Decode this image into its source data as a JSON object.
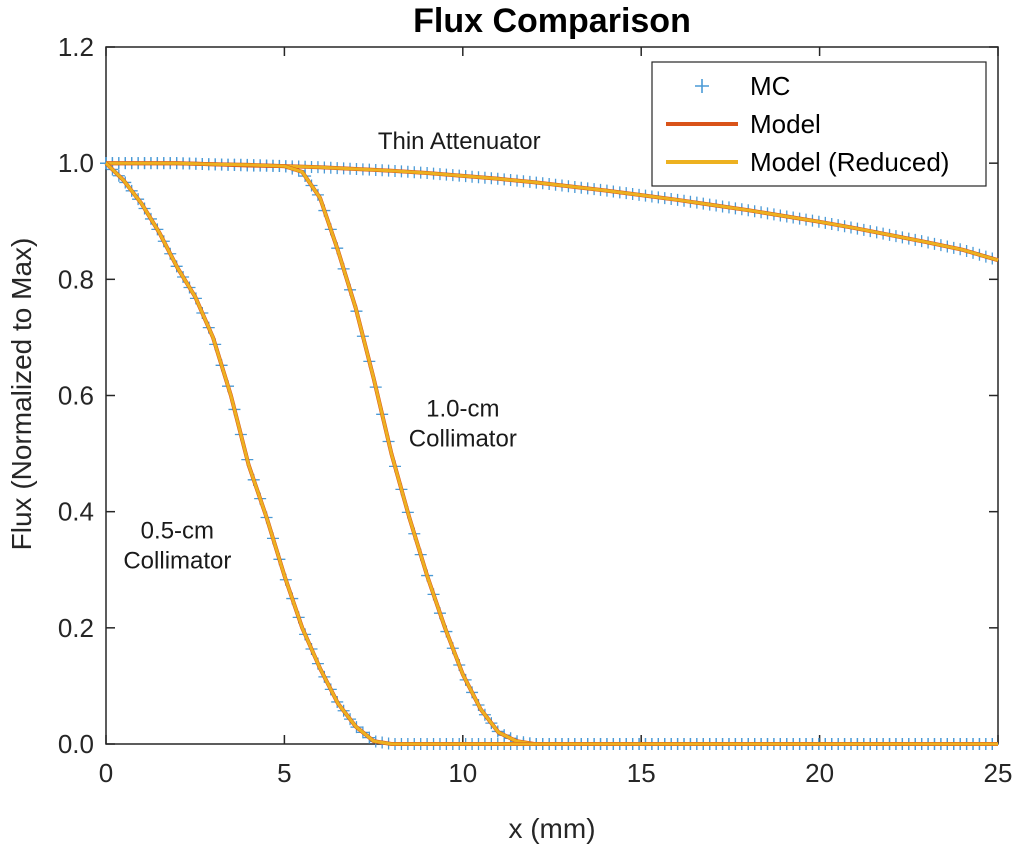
{
  "chart_data": {
    "type": "line",
    "title": "Flux Comparison",
    "xlabel": "x (mm)",
    "ylabel": "Flux (Normalized to Max)",
    "xlim": [
      0,
      25
    ],
    "ylim": [
      0,
      1.2
    ],
    "xticks": [
      0,
      5,
      10,
      15,
      20,
      25
    ],
    "xtick_labels": [
      "0",
      "5",
      "10",
      "15",
      "20",
      "25"
    ],
    "yticks": [
      0,
      0.2,
      0.4,
      0.6,
      0.8,
      1.0,
      1.2
    ],
    "ytick_labels": [
      "0.0",
      "0.2",
      "0.4",
      "0.6",
      "0.8",
      "1.0",
      "1.2"
    ],
    "grid": false,
    "legend_position": "top-right",
    "legend": [
      {
        "label": "MC",
        "style": "marker-plus",
        "color": "#4a9ad6"
      },
      {
        "label": "Model",
        "style": "line",
        "color": "#d95319"
      },
      {
        "label": "Model (Reduced)",
        "style": "line",
        "color": "#edb120"
      }
    ],
    "annotations": [
      {
        "lines": [
          "Thin Attenuator"
        ],
        "x": 9.9,
        "y": 1.0
      },
      {
        "lines": [
          "1.0-cm",
          "Collimator"
        ],
        "x": 10.0,
        "y": 0.54
      },
      {
        "lines": [
          "0.5-cm",
          "Collimator"
        ],
        "x": 2.0,
        "y": 0.33
      }
    ],
    "series": [
      {
        "curve": "Thin Attenuator",
        "x": [
          0,
          1,
          2,
          3,
          4,
          5,
          6,
          7,
          8,
          9,
          10,
          11,
          12,
          13,
          14,
          15,
          16,
          17,
          18,
          19,
          20,
          21,
          22,
          23,
          24,
          25
        ],
        "y": [
          1.0,
          1.0,
          1.0,
          0.998,
          0.996,
          0.995,
          0.993,
          0.99,
          0.987,
          0.983,
          0.978,
          0.973,
          0.967,
          0.96,
          0.953,
          0.945,
          0.937,
          0.928,
          0.919,
          0.909,
          0.899,
          0.888,
          0.876,
          0.864,
          0.851,
          0.833
        ]
      },
      {
        "curve": "1.0-cm Collimator",
        "x": [
          0,
          1,
          2,
          3,
          4,
          5,
          5.5,
          6.0,
          6.5,
          7.0,
          7.5,
          8.0,
          8.5,
          9.0,
          9.5,
          10.0,
          10.5,
          11.0,
          11.5,
          12,
          15,
          20,
          25
        ],
        "y": [
          1.0,
          1.0,
          1.0,
          0.998,
          0.997,
          0.995,
          0.985,
          0.94,
          0.85,
          0.75,
          0.63,
          0.5,
          0.39,
          0.29,
          0.2,
          0.12,
          0.06,
          0.02,
          0.005,
          0.0,
          0.0,
          0.0,
          0.0
        ]
      },
      {
        "curve": "0.5-cm Collimator",
        "x": [
          0,
          0.5,
          1.0,
          1.5,
          2.0,
          2.5,
          3.0,
          3.5,
          4.0,
          4.5,
          5.0,
          5.5,
          6.0,
          6.5,
          7.0,
          7.5,
          8,
          10,
          15,
          20,
          25
        ],
        "y": [
          1.0,
          0.97,
          0.93,
          0.88,
          0.82,
          0.77,
          0.7,
          0.6,
          0.48,
          0.39,
          0.29,
          0.2,
          0.13,
          0.07,
          0.03,
          0.005,
          0.0,
          0.0,
          0.0,
          0.0,
          0.0
        ]
      }
    ]
  }
}
